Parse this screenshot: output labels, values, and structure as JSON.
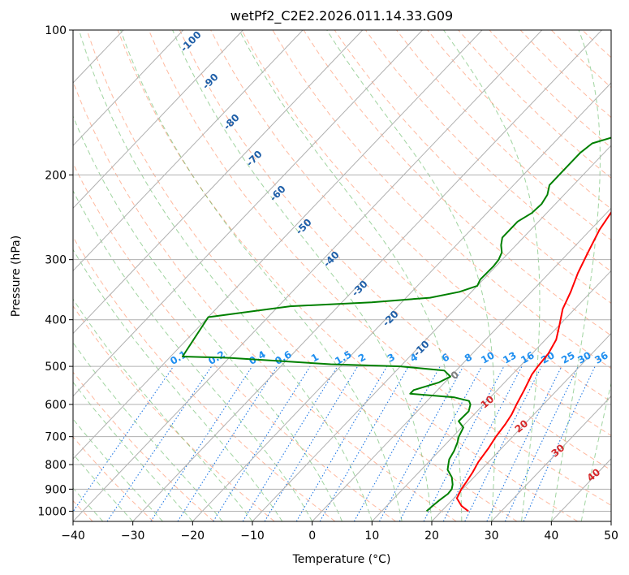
{
  "chart_data": {
    "type": "line",
    "title": "wetPf2_C2E2.2026.011.14.33.G09",
    "xlabel": "Temperature (°C)",
    "ylabel": "Pressure (hPa)",
    "xlim": [
      -40,
      50
    ],
    "ylim": [
      1050,
      100
    ],
    "y_scale": "log",
    "grid": true,
    "x_ticks": [
      -40,
      -30,
      -20,
      -10,
      0,
      10,
      20,
      30,
      40,
      50
    ],
    "y_ticks": [
      100,
      200,
      300,
      400,
      500,
      600,
      700,
      800,
      900,
      1000
    ],
    "series": [
      {
        "color": "#ff0000",
        "points": [
          [
            24.5,
            1000
          ],
          [
            22.5,
            975
          ],
          [
            20.5,
            940
          ],
          [
            19.8,
            900
          ],
          [
            19.5,
            870
          ],
          [
            19.0,
            830
          ],
          [
            18.3,
            790
          ],
          [
            17.8,
            740
          ],
          [
            17.2,
            700
          ],
          [
            16.8,
            660
          ],
          [
            16.3,
            630
          ],
          [
            15.5,
            600
          ],
          [
            14.5,
            560
          ],
          [
            13.3,
            520
          ],
          [
            13.0,
            500
          ],
          [
            12.7,
            470
          ],
          [
            11.8,
            440
          ],
          [
            10.0,
            410
          ],
          [
            8.0,
            380
          ],
          [
            6.6,
            350
          ],
          [
            4.8,
            320
          ],
          [
            3.2,
            290
          ],
          [
            1.5,
            260
          ],
          [
            0.3,
            230
          ],
          [
            -1.0,
            210
          ],
          [
            -1.4,
            200
          ],
          [
            -0.8,
            190
          ],
          [
            0.6,
            180
          ],
          [
            2.8,
            170
          ],
          [
            2.5,
            160
          ],
          [
            1.5,
            150
          ],
          [
            1.7,
            140
          ],
          [
            4.5,
            130
          ],
          [
            9.0,
            120
          ],
          [
            12.5,
            112
          ],
          [
            13.6,
            108
          ],
          [
            15.6,
            100
          ]
        ]
      },
      {
        "color": "#008000",
        "points": [
          [
            17.5,
            1000
          ],
          [
            17.7,
            970
          ],
          [
            17.9,
            950
          ],
          [
            18.3,
            920
          ],
          [
            18.2,
            900
          ],
          [
            17.6,
            880
          ],
          [
            16.3,
            850
          ],
          [
            14.4,
            820
          ],
          [
            13.7,
            800
          ],
          [
            13.0,
            780
          ],
          [
            12.5,
            750
          ],
          [
            11.7,
            720
          ],
          [
            11.0,
            700
          ],
          [
            10.3,
            670
          ],
          [
            8.5,
            650
          ],
          [
            8.6,
            620
          ],
          [
            7.8,
            600
          ],
          [
            7.0,
            590
          ],
          [
            4.0,
            580
          ],
          [
            -4.0,
            570
          ],
          [
            -4.0,
            560
          ],
          [
            -1.0,
            540
          ],
          [
            0.0,
            525
          ],
          [
            -2.0,
            510
          ],
          [
            -10.0,
            500
          ],
          [
            -22.0,
            495
          ],
          [
            -40.0,
            480
          ],
          [
            -48.0,
            477
          ],
          [
            -50.0,
            395
          ],
          [
            -38.0,
            375
          ],
          [
            -25.0,
            368
          ],
          [
            -16.0,
            360
          ],
          [
            -12.0,
            350
          ],
          [
            -10.0,
            340
          ],
          [
            -10.5,
            330
          ],
          [
            -10.4,
            310
          ],
          [
            -10.6,
            300
          ],
          [
            -11.2,
            290
          ],
          [
            -12.5,
            280
          ],
          [
            -13.5,
            270
          ],
          [
            -13.5,
            250
          ],
          [
            -12.5,
            240
          ],
          [
            -12.3,
            230
          ],
          [
            -12.8,
            220
          ],
          [
            -14.0,
            210
          ],
          [
            -14.0,
            200
          ],
          [
            -14.0,
            190
          ],
          [
            -14.0,
            180
          ],
          [
            -13.5,
            172
          ],
          [
            -10.0,
            165
          ],
          [
            -6.0,
            160
          ],
          [
            -5.0,
            155
          ],
          [
            -5.5,
            150
          ],
          [
            -5.7,
            140
          ],
          [
            -5.5,
            130
          ],
          [
            -5.0,
            125
          ],
          [
            -3.0,
            118
          ],
          [
            0.0,
            112
          ],
          [
            1.0,
            106
          ],
          [
            0.3,
            100
          ]
        ]
      }
    ],
    "isotherm_labels": [
      "-100",
      "-90",
      "-80",
      "-70",
      "-60",
      "-50",
      "-40",
      "-30",
      "-20",
      "-10"
    ],
    "mixing_ratio_labels": [
      "0.1",
      "0.2",
      "0.4",
      "0.6",
      "1",
      "1.5",
      "2",
      "3",
      "4",
      "6",
      "8",
      "10",
      "13",
      "16",
      "20",
      "25",
      "30",
      "36"
    ],
    "moist_adiabat_labels": [
      "0",
      "10",
      "20",
      "30",
      "40"
    ]
  }
}
